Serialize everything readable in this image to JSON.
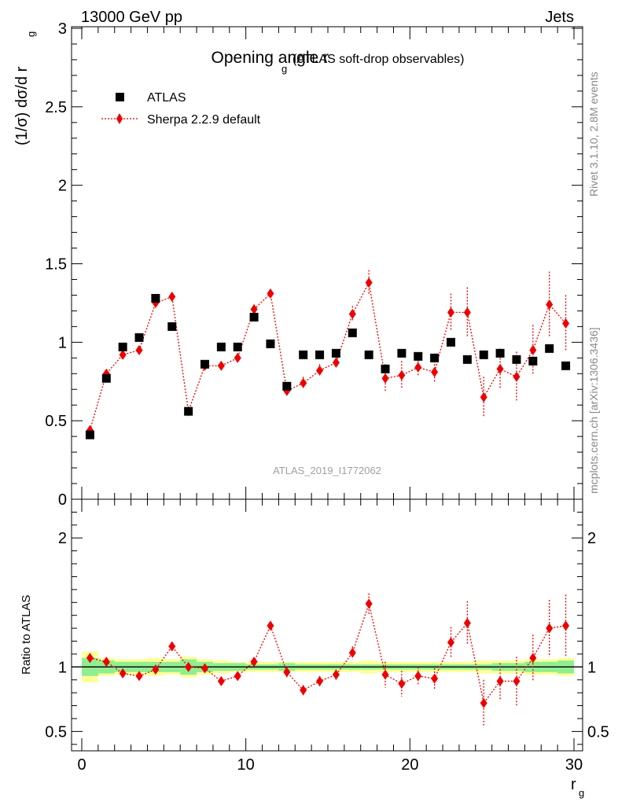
{
  "header": {
    "energy": "13000 GeV pp",
    "process": "Jets"
  },
  "side_labels": {
    "rivet": "Rivet 3.1.10,  2.8M events",
    "mcplots": "mcplots.cern.ch [arXiv:1306.3436]"
  },
  "colors": {
    "data": "#000000",
    "mc": "#ee0000",
    "band_inner": "#90ee90",
    "band_outer": "#ffff99",
    "watermark": "#a0a0a0"
  },
  "chart_data": [
    {
      "type": "scatter",
      "title": "Opening angle r",
      "title_sub": "g",
      "title_extra": "(ATLAS soft-drop observables)",
      "ylabel": "(1/σ) dσ/d r",
      "ylabel_sub": "g",
      "watermark": "ATLAS_2019_I1772062",
      "ylim": [
        0,
        3
      ],
      "xlim": [
        0,
        30
      ],
      "yticks": [
        0.5,
        1,
        1.5,
        2,
        2.5,
        3
      ],
      "ytick_labels": [
        "0.5",
        "1",
        "1.5",
        "2",
        "2.5",
        "3"
      ],
      "legend_position": "top-left",
      "series": [
        {
          "name": "ATLAS",
          "marker": "square",
          "x": [
            0.5,
            1.5,
            2.5,
            3.5,
            4.5,
            5.5,
            6.5,
            7.5,
            8.5,
            9.5,
            10.5,
            11.5,
            12.5,
            13.5,
            14.5,
            15.5,
            16.5,
            17.5,
            18.5,
            19.5,
            20.5,
            21.5,
            22.5,
            23.5,
            24.5,
            25.5,
            26.5,
            27.5,
            28.5,
            29.5
          ],
          "y": [
            0.41,
            0.77,
            0.97,
            1.03,
            1.28,
            1.1,
            0.56,
            0.86,
            0.97,
            0.97,
            1.16,
            0.99,
            0.72,
            0.92,
            0.92,
            0.93,
            1.06,
            0.92,
            0.83,
            0.93,
            0.91,
            0.9,
            1.0,
            0.89,
            0.92,
            0.93,
            0.89,
            0.88,
            0.96,
            0.85
          ]
        },
        {
          "name": "Sherpa 2.2.9 default",
          "marker": "diamond",
          "line": "dotted",
          "x": [
            0.5,
            1.5,
            2.5,
            3.5,
            4.5,
            5.5,
            6.5,
            7.5,
            8.5,
            9.5,
            10.5,
            11.5,
            12.5,
            13.5,
            14.5,
            15.5,
            16.5,
            17.5,
            18.5,
            19.5,
            20.5,
            21.5,
            22.5,
            23.5,
            24.5,
            25.5,
            26.5,
            27.5,
            28.5,
            29.5
          ],
          "y": [
            0.44,
            0.8,
            0.92,
            0.95,
            1.25,
            1.29,
            0.56,
            0.85,
            0.85,
            0.9,
            1.21,
            1.31,
            0.69,
            0.74,
            0.82,
            0.87,
            1.18,
            1.38,
            0.77,
            0.79,
            0.84,
            0.81,
            1.19,
            1.19,
            0.65,
            0.83,
            0.78,
            0.95,
            1.24,
            1.12
          ],
          "err": [
            0.02,
            0.02,
            0.02,
            0.02,
            0.03,
            0.02,
            0.02,
            0.02,
            0.02,
            0.03,
            0.03,
            0.03,
            0.03,
            0.04,
            0.04,
            0.04,
            0.05,
            0.08,
            0.09,
            0.09,
            0.06,
            0.07,
            0.12,
            0.16,
            0.13,
            0.13,
            0.16,
            0.16,
            0.21,
            0.18
          ]
        }
      ]
    },
    {
      "type": "scatter",
      "title": "",
      "ylabel": "Ratio to ATLAS",
      "ylim": [
        0.35,
        2.3
      ],
      "xlim": [
        0,
        30
      ],
      "xlabel": "r",
      "xlabel_sub": "g",
      "yticks": [
        0.5,
        1,
        2
      ],
      "ytick_labels": [
        "0.5",
        "1",
        "2"
      ],
      "xticks": [
        0,
        10,
        20,
        30
      ],
      "xtick_labels": [
        "0",
        "10",
        "20",
        "30"
      ],
      "reference_line": 1,
      "bands": {
        "inner": [
          0.07,
          0.05,
          0.04,
          0.04,
          0.04,
          0.04,
          0.06,
          0.04,
          0.03,
          0.03,
          0.02,
          0.02,
          0.03,
          0.02,
          0.02,
          0.02,
          0.02,
          0.02,
          0.02,
          0.02,
          0.02,
          0.02,
          0.02,
          0.02,
          0.02,
          0.03,
          0.03,
          0.04,
          0.04,
          0.05
        ],
        "outer": [
          0.12,
          0.07,
          0.06,
          0.06,
          0.07,
          0.06,
          0.08,
          0.06,
          0.05,
          0.04,
          0.04,
          0.04,
          0.04,
          0.04,
          0.04,
          0.04,
          0.04,
          0.05,
          0.04,
          0.04,
          0.04,
          0.04,
          0.04,
          0.04,
          0.05,
          0.05,
          0.05,
          0.06,
          0.06,
          0.07
        ]
      },
      "series": [
        {
          "name": "Sherpa 2.2.9 default",
          "marker": "diamond",
          "line": "dotted",
          "x": [
            0.5,
            1.5,
            2.5,
            3.5,
            4.5,
            5.5,
            6.5,
            7.5,
            8.5,
            9.5,
            10.5,
            11.5,
            12.5,
            13.5,
            14.5,
            15.5,
            16.5,
            17.5,
            18.5,
            19.5,
            20.5,
            21.5,
            22.5,
            23.5,
            24.5,
            25.5,
            26.5,
            27.5,
            28.5,
            29.5
          ],
          "y": [
            1.07,
            1.04,
            0.95,
            0.93,
            0.98,
            1.16,
            1.0,
            0.99,
            0.89,
            0.93,
            1.04,
            1.32,
            0.96,
            0.82,
            0.89,
            0.94,
            1.11,
            1.49,
            0.94,
            0.87,
            0.93,
            0.91,
            1.19,
            1.34,
            0.72,
            0.89,
            0.89,
            1.07,
            1.3,
            1.32
          ],
          "err": [
            0.03,
            0.02,
            0.02,
            0.02,
            0.02,
            0.02,
            0.03,
            0.02,
            0.02,
            0.03,
            0.03,
            0.03,
            0.04,
            0.04,
            0.04,
            0.04,
            0.05,
            0.08,
            0.1,
            0.1,
            0.07,
            0.08,
            0.12,
            0.17,
            0.18,
            0.14,
            0.19,
            0.18,
            0.22,
            0.24
          ]
        }
      ]
    }
  ]
}
